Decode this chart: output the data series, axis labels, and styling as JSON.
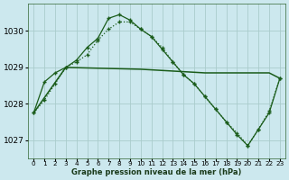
{
  "title": "Graphe pression niveau de la mer (hPa)",
  "bg_color": "#cce8ee",
  "grid_color": "#aacccc",
  "line_color": "#1a5c1a",
  "ylim": [
    1026.5,
    1030.75
  ],
  "xlim": [
    -0.5,
    23.5
  ],
  "yticks": [
    1027,
    1028,
    1029,
    1030
  ],
  "xticks": [
    0,
    1,
    2,
    3,
    4,
    5,
    6,
    7,
    8,
    9,
    10,
    11,
    12,
    13,
    14,
    15,
    16,
    17,
    18,
    19,
    20,
    21,
    22,
    23
  ],
  "s1_x": [
    0,
    1,
    2,
    3,
    4,
    5,
    6,
    7,
    8,
    9,
    10,
    11,
    12,
    13,
    14,
    15,
    16,
    17,
    18,
    19,
    20,
    21,
    22,
    23
  ],
  "s1_y": [
    1027.75,
    1028.6,
    1028.85,
    1029.0,
    1029.2,
    1029.55,
    1029.8,
    1030.35,
    1030.45,
    1030.3,
    1030.05,
    1029.85,
    1029.5,
    1029.15,
    1028.8,
    1028.55,
    1028.2,
    1027.85,
    1027.5,
    1027.15,
    1026.85,
    1027.3,
    1027.75,
    1028.7
  ],
  "s2_x": [
    0,
    1,
    2,
    3,
    4,
    5,
    6,
    7,
    8,
    9,
    10,
    11,
    12,
    13,
    14,
    15,
    16,
    17,
    18,
    19,
    20,
    21,
    22,
    23
  ],
  "s2_y": [
    1027.75,
    1028.1,
    1028.55,
    1029.0,
    1029.15,
    1029.35,
    1029.75,
    1030.05,
    1030.25,
    1030.25,
    1030.05,
    1029.85,
    1029.55,
    1029.15,
    1028.8,
    1028.55,
    1028.2,
    1027.85,
    1027.5,
    1027.2,
    1026.85,
    1027.3,
    1027.8,
    1028.7
  ],
  "s3_x": [
    0,
    3,
    10,
    16,
    19,
    22,
    23
  ],
  "s3_y": [
    1027.75,
    1029.0,
    1028.95,
    1028.85,
    1028.85,
    1028.85,
    1028.7
  ]
}
